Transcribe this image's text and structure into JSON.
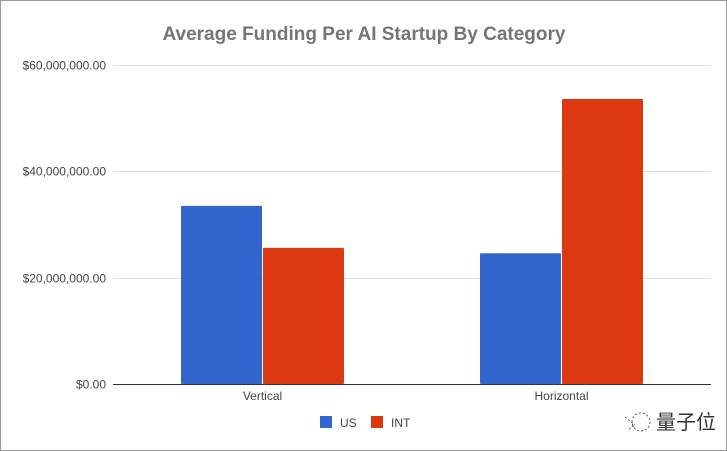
{
  "chart_data": {
    "type": "bar",
    "title": "Average Funding Per AI Startup By Category",
    "xlabel": "",
    "ylabel": "",
    "categories": [
      "Vertical",
      "Horizontal"
    ],
    "series": [
      {
        "name": "US",
        "color": "#3366cc",
        "values": [
          33500000,
          24600000
        ]
      },
      {
        "name": "INT",
        "color": "#dc3912",
        "values": [
          25600000,
          53600000
        ]
      }
    ],
    "ylim": [
      0,
      60000000
    ],
    "yticks": [
      0,
      20000000,
      40000000,
      60000000
    ],
    "ytick_labels": [
      "$0.00",
      "$20,000,000.00",
      "$40,000,000.00",
      "$60,000,000.00"
    ],
    "grid": true,
    "legend_position": "bottom"
  },
  "watermark": {
    "text": "量子位"
  }
}
